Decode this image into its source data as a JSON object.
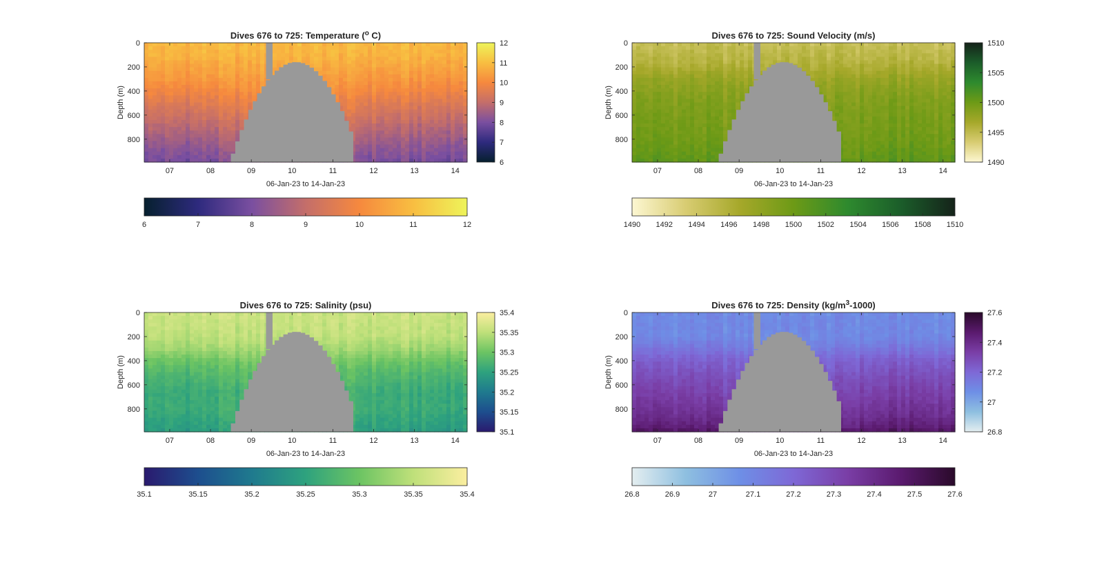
{
  "chart_data": [
    {
      "type": "heatmap",
      "title_main": "Dives 676 to 725: Temperature (",
      "title_sup": "o",
      "title_end": " C)",
      "xlabel": "06-Jan-23 to 14-Jan-23",
      "ylabel": "Depth (m)",
      "xlim": [
        "06-Jan-2023 09:00",
        "14-Jan-2023 07:00"
      ],
      "ylim": [
        0,
        990
      ],
      "y_reversed": true,
      "x_ticks": [
        "07",
        "08",
        "09",
        "10",
        "11",
        "12",
        "13",
        "14"
      ],
      "y_ticks": [
        0,
        200,
        400,
        600,
        800
      ],
      "clim": [
        6,
        12
      ],
      "vertical_colorbar_ticks": [
        "6",
        "7",
        "8",
        "9",
        "10",
        "11",
        "12"
      ],
      "horizontal_colorbar_ticks": [
        "6",
        "7",
        "8",
        "9",
        "10",
        "11",
        "12"
      ],
      "colormap": [
        "#06202e",
        "#2e2a7e",
        "#7a4fa0",
        "#c46e6a",
        "#f6893e",
        "#f8be41",
        "#eef45a"
      ],
      "profile": [
        [
          0,
          10.9
        ],
        [
          100,
          10.8
        ],
        [
          250,
          10.4
        ],
        [
          400,
          9.9
        ],
        [
          550,
          9.3
        ],
        [
          700,
          8.8
        ],
        [
          850,
          8.3
        ],
        [
          990,
          7.9
        ]
      ],
      "no_data_color": "#999999"
    },
    {
      "type": "heatmap",
      "title_main": "Dives 676 to 725: Sound Velocity (m/s)",
      "title_sup": "",
      "title_end": "",
      "xlabel": "06-Jan-23 to 14-Jan-23",
      "ylabel": "Depth (m)",
      "xlim": [
        "06-Jan-2023 09:00",
        "14-Jan-2023 07:00"
      ],
      "ylim": [
        0,
        990
      ],
      "y_reversed": true,
      "x_ticks": [
        "07",
        "08",
        "09",
        "10",
        "11",
        "12",
        "13",
        "14"
      ],
      "y_ticks": [
        0,
        200,
        400,
        600,
        800
      ],
      "clim": [
        1490,
        1510
      ],
      "vertical_colorbar_ticks": [
        "1490",
        "1495",
        "1500",
        "1505",
        "1510"
      ],
      "horizontal_colorbar_ticks": [
        "1490",
        "1492",
        "1494",
        "1496",
        "1498",
        "1500",
        "1502",
        "1504",
        "1506",
        "1508",
        "1510"
      ],
      "colormap": [
        "#fdf7d2",
        "#d8cc72",
        "#a6a82a",
        "#6d9a16",
        "#2e8a2e",
        "#1b5d2a",
        "#15231a"
      ],
      "profile": [
        [
          0,
          1494.5
        ],
        [
          150,
          1495.5
        ],
        [
          300,
          1497.5
        ],
        [
          450,
          1498.8
        ],
        [
          600,
          1499.3
        ],
        [
          800,
          1499.8
        ],
        [
          990,
          1500.8
        ]
      ],
      "no_data_color": "#999999"
    },
    {
      "type": "heatmap",
      "title_main": "Dives 676 to 725: Salinity (psu)",
      "title_sup": "",
      "title_end": "",
      "xlabel": "06-Jan-23 to 14-Jan-23",
      "ylabel": "Depth (m)",
      "xlim": [
        "06-Jan-2023 09:00",
        "14-Jan-2023 07:00"
      ],
      "ylim": [
        0,
        990
      ],
      "y_reversed": true,
      "x_ticks": [
        "07",
        "08",
        "09",
        "10",
        "11",
        "12",
        "13",
        "14"
      ],
      "y_ticks": [
        0,
        200,
        400,
        600,
        800
      ],
      "clim": [
        35.1,
        35.4
      ],
      "vertical_colorbar_ticks": [
        "35.1",
        "35.15",
        "35.2",
        "35.25",
        "35.3",
        "35.35",
        "35.4"
      ],
      "horizontal_colorbar_ticks": [
        "35.1",
        "35.15",
        "35.2",
        "35.25",
        "35.3",
        "35.35",
        "35.4"
      ],
      "colormap": [
        "#2a1a6e",
        "#1d4e8e",
        "#1f7a8e",
        "#2ea27e",
        "#6cc463",
        "#bfe07a",
        "#fbeea0"
      ],
      "profile": [
        [
          0,
          35.36
        ],
        [
          200,
          35.35
        ],
        [
          300,
          35.33
        ],
        [
          400,
          35.3
        ],
        [
          500,
          35.28
        ],
        [
          650,
          35.26
        ],
        [
          800,
          35.26
        ],
        [
          990,
          35.24
        ]
      ],
      "no_data_color": "#999999"
    },
    {
      "type": "heatmap",
      "title_main": "Dives 676 to 725: Density (kg/m",
      "title_sup": "3",
      "title_end": "-1000)",
      "xlabel": "06-Jan-23 to 14-Jan-23",
      "ylabel": "Depth (m)",
      "xlim": [
        "06-Jan-2023 09:00",
        "14-Jan-2023 07:00"
      ],
      "ylim": [
        0,
        990
      ],
      "y_reversed": true,
      "x_ticks": [
        "07",
        "08",
        "09",
        "10",
        "11",
        "12",
        "13",
        "14"
      ],
      "y_ticks": [
        0,
        200,
        400,
        600,
        800
      ],
      "clim": [
        26.8,
        27.6
      ],
      "vertical_colorbar_ticks": [
        "26.8",
        "27",
        "27.2",
        "27.4",
        "27.6"
      ],
      "horizontal_colorbar_ticks": [
        "26.8",
        "26.9",
        "27",
        "27.1",
        "27.2",
        "27.3",
        "27.4",
        "27.5",
        "27.6"
      ],
      "colormap": [
        "#e4eef0",
        "#8ebfe0",
        "#6e8fe6",
        "#7e68d6",
        "#7a3ea6",
        "#5a1a6e",
        "#2a0a2a"
      ],
      "profile": [
        [
          0,
          27.08
        ],
        [
          200,
          27.09
        ],
        [
          300,
          27.15
        ],
        [
          400,
          27.23
        ],
        [
          550,
          27.29
        ],
        [
          700,
          27.34
        ],
        [
          850,
          27.39
        ],
        [
          950,
          27.45
        ],
        [
          990,
          27.5
        ]
      ],
      "no_data_color": "#999999"
    }
  ]
}
